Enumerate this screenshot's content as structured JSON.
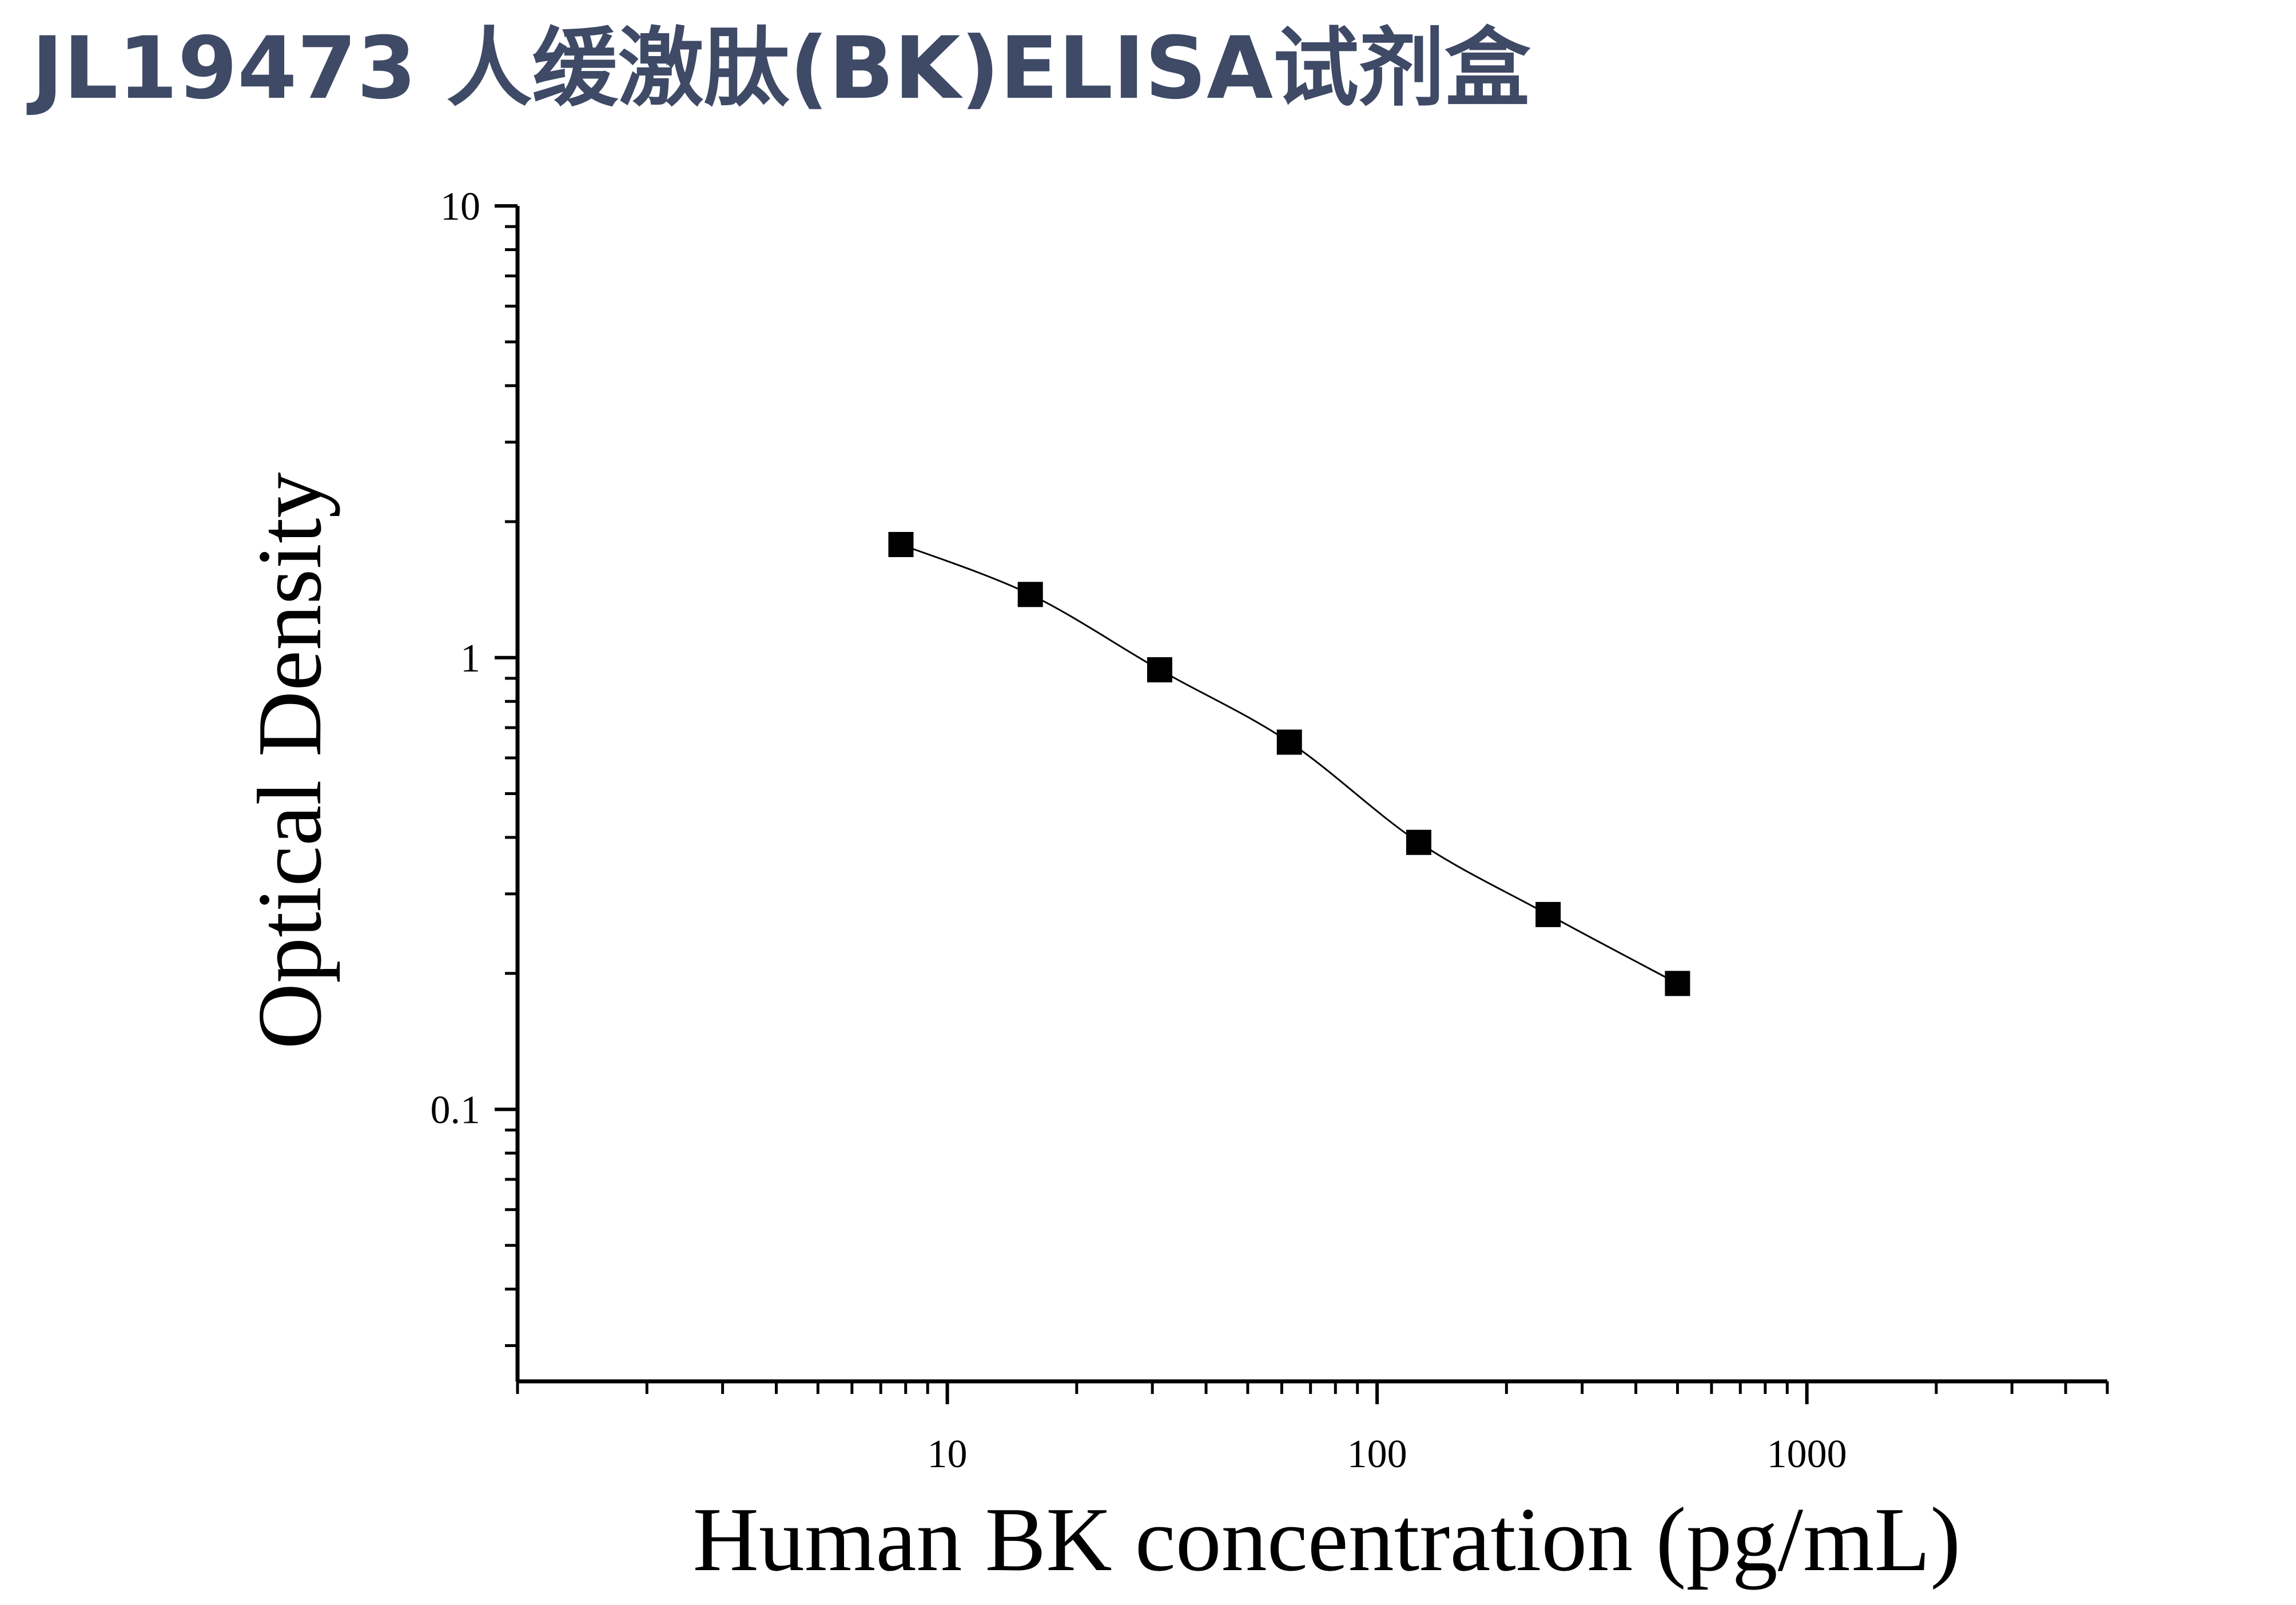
{
  "page": {
    "title": "JL19473 人缓激肽(BK)ELISA试剂盒"
  },
  "colors": {
    "title": "#3e4a66",
    "axis": "#000000",
    "marker": "#000000",
    "curve": "#000000"
  },
  "chart_data": {
    "type": "scatter",
    "title": "",
    "xlabel": "Human BK concentration (pg/mL)",
    "ylabel": "Optical Density",
    "x_scale": "log",
    "y_scale": "log",
    "xlim": [
      1,
      5000
    ],
    "ylim": [
      0.025,
      10
    ],
    "x_ticks": [
      {
        "value": 10,
        "label": "10"
      },
      {
        "value": 100,
        "label": "100"
      },
      {
        "value": 1000,
        "label": "1000"
      }
    ],
    "y_ticks": [
      {
        "value": 0.1,
        "label": "0.1"
      },
      {
        "value": 1,
        "label": "1"
      },
      {
        "value": 10,
        "label": "10"
      }
    ],
    "grid": false,
    "legend": "none",
    "marker": "square",
    "fit_curve": "smooth",
    "series": [
      {
        "x": [
          7.8,
          15.6,
          31.2,
          62.5,
          125,
          250,
          500
        ],
        "y": [
          1.78,
          1.38,
          0.94,
          0.65,
          0.39,
          0.27,
          0.19
        ]
      }
    ]
  }
}
